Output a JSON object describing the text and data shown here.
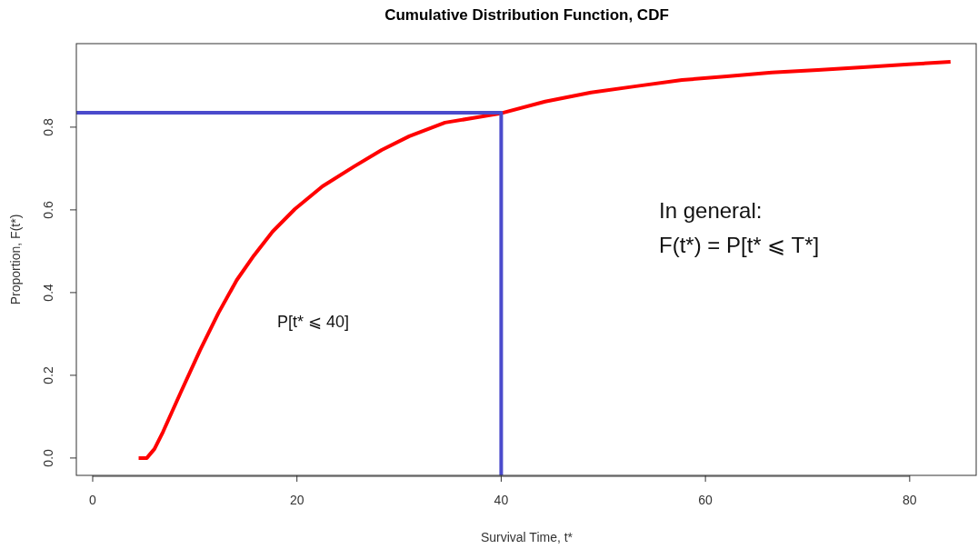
{
  "chart_data": {
    "type": "line",
    "title": "Cumulative Distribution Function, CDF",
    "xlabel": "Survival Time, t*",
    "ylabel": "Proportion, F(t*)",
    "xlim": [
      -1.6,
      86.6
    ],
    "ylim": [
      -0.042,
      1.002
    ],
    "xticks": [
      0,
      20,
      40,
      60,
      80
    ],
    "yticks": [
      {
        "value": 0,
        "label": "0.0"
      },
      {
        "value": 0.2,
        "label": "0.2"
      },
      {
        "value": 0.4,
        "label": "0.4"
      },
      {
        "value": 0.6,
        "label": "0.6"
      },
      {
        "value": 0.8,
        "label": "0.8"
      }
    ],
    "grid": false,
    "series": [
      {
        "color": "#ff0000",
        "x": [
          4.5,
          5.3,
          6.05,
          6.9,
          8.7,
          10.5,
          12.3,
          14.1,
          15.8,
          17.6,
          19.8,
          22.5,
          25.6,
          28.3,
          31,
          34.5,
          39.9,
          44.3,
          48.8,
          53.2,
          57.7,
          62.1,
          66.5,
          71,
          75.4,
          79.9,
          84
        ],
        "values": [
          0,
          0,
          0.022,
          0.064,
          0.163,
          0.26,
          0.35,
          0.43,
          0.49,
          0.547,
          0.602,
          0.657,
          0.705,
          0.745,
          0.778,
          0.811,
          0.833,
          0.862,
          0.884,
          0.899,
          0.914,
          0.923,
          0.932,
          0.938,
          0.945,
          0.952,
          0.958
        ]
      },
      {
        "color": "#4b4bcc",
        "x": [
          -1.6,
          40,
          40
        ],
        "values": [
          0.835,
          0.835,
          -0.042
        ]
      }
    ],
    "annotations": [
      "P[t* ⩽ 40]",
      "In general:",
      "F(t*) = P[t* ⩽ T*]"
    ]
  }
}
